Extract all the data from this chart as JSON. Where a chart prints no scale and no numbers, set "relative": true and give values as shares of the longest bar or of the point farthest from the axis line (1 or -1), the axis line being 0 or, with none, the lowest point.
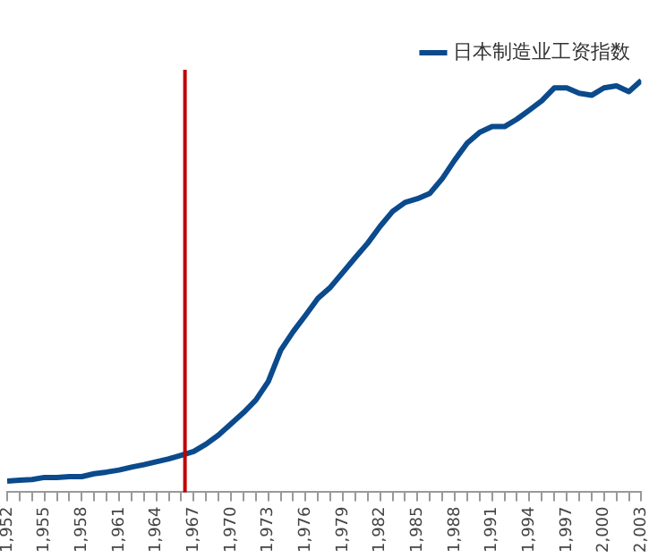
{
  "chart_data": {
    "type": "line",
    "relative": true,
    "legend": "top right",
    "x": [
      1952,
      1953,
      1954,
      1955,
      1956,
      1957,
      1958,
      1959,
      1960,
      1961,
      1962,
      1963,
      1964,
      1965,
      1966,
      1967,
      1968,
      1969,
      1970,
      1971,
      1972,
      1973,
      1974,
      1975,
      1976,
      1977,
      1978,
      1979,
      1980,
      1981,
      1982,
      1983,
      1984,
      1985,
      1986,
      1987,
      1988,
      1989,
      1990,
      1991,
      1992,
      1993,
      1994,
      1995,
      1996,
      1997,
      1998,
      1999,
      2000,
      2001,
      2002,
      2003
    ],
    "xlim": [
      1952,
      2003
    ],
    "xticks": [
      {
        "value": 1952,
        "label": "1,952"
      },
      {
        "value": 1953,
        "label": null
      },
      {
        "value": 1954,
        "label": null
      },
      {
        "value": 1955,
        "label": "1,955"
      },
      {
        "value": 1956,
        "label": null
      },
      {
        "value": 1957,
        "label": null
      },
      {
        "value": 1958,
        "label": "1,958"
      },
      {
        "value": 1959,
        "label": null
      },
      {
        "value": 1960,
        "label": null
      },
      {
        "value": 1961,
        "label": "1,961"
      },
      {
        "value": 1962,
        "label": null
      },
      {
        "value": 1963,
        "label": null
      },
      {
        "value": 1964,
        "label": "1,964"
      },
      {
        "value": 1965,
        "label": null
      },
      {
        "value": 1966,
        "label": null
      },
      {
        "value": 1967,
        "label": "1,967"
      },
      {
        "value": 1968,
        "label": null
      },
      {
        "value": 1969,
        "label": null
      },
      {
        "value": 1970,
        "label": "1,970"
      },
      {
        "value": 1971,
        "label": null
      },
      {
        "value": 1972,
        "label": null
      },
      {
        "value": 1973,
        "label": "1,973"
      },
      {
        "value": 1974,
        "label": null
      },
      {
        "value": 1975,
        "label": null
      },
      {
        "value": 1976,
        "label": "1,976"
      },
      {
        "value": 1977,
        "label": null
      },
      {
        "value": 1978,
        "label": null
      },
      {
        "value": 1979,
        "label": "1,979"
      },
      {
        "value": 1980,
        "label": null
      },
      {
        "value": 1981,
        "label": null
      },
      {
        "value": 1982,
        "label": "1,982"
      },
      {
        "value": 1983,
        "label": null
      },
      {
        "value": 1984,
        "label": null
      },
      {
        "value": 1985,
        "label": "1,985"
      },
      {
        "value": 1986,
        "label": null
      },
      {
        "value": 1987,
        "label": null
      },
      {
        "value": 1988,
        "label": "1,988"
      },
      {
        "value": 1989,
        "label": null
      },
      {
        "value": 1990,
        "label": null
      },
      {
        "value": 1991,
        "label": "1,991"
      },
      {
        "value": 1992,
        "label": null
      },
      {
        "value": 1993,
        "label": null
      },
      {
        "value": 1994,
        "label": "1,994"
      },
      {
        "value": 1995,
        "label": null
      },
      {
        "value": 1996,
        "label": null
      },
      {
        "value": 1997,
        "label": "1,997"
      },
      {
        "value": 1998,
        "label": null
      },
      {
        "value": 1999,
        "label": null
      },
      {
        "value": 2000,
        "label": "2,000"
      },
      {
        "value": 2001,
        "label": null
      },
      {
        "value": 2002,
        "label": null
      },
      {
        "value": 2003,
        "label": "2,003"
      }
    ],
    "series": [
      {
        "name": "日本制造业工资指数",
        "color": "#0b4a8c",
        "values": [
          0.027,
          0.029,
          0.031,
          0.036,
          0.036,
          0.038,
          0.038,
          0.045,
          0.049,
          0.054,
          0.061,
          0.067,
          0.074,
          0.081,
          0.09,
          0.099,
          0.117,
          0.139,
          0.166,
          0.193,
          0.224,
          0.269,
          0.345,
          0.39,
          0.43,
          0.471,
          0.498,
          0.534,
          0.57,
          0.605,
          0.646,
          0.682,
          0.704,
          0.713,
          0.726,
          0.762,
          0.807,
          0.848,
          0.874,
          0.888,
          0.888,
          0.906,
          0.928,
          0.951,
          0.982,
          0.982,
          0.969,
          0.964,
          0.982,
          0.987,
          0.973,
          1
        ]
      }
    ],
    "ref_lines": [
      {
        "axis": "x",
        "value": 1966.3,
        "color": "#c00000"
      }
    ]
  }
}
